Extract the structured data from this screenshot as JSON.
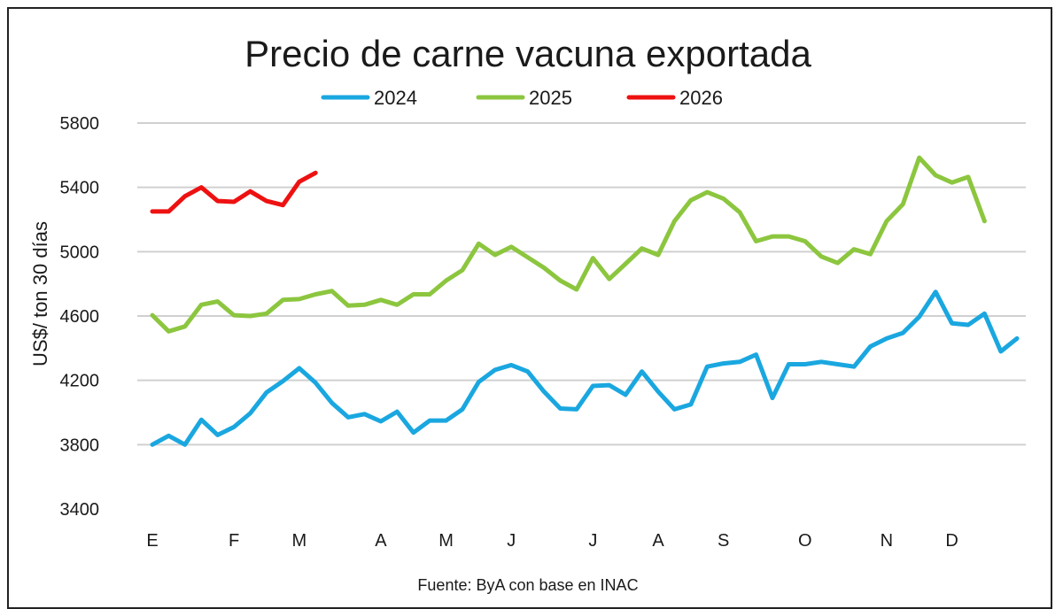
{
  "chart_data": {
    "type": "line",
    "title": "Precio de carne vacuna exportada",
    "ylabel": "US$/ ton 30 días",
    "xlabel": "",
    "source": "Fuente: ByA con base en INAC",
    "ylim": [
      3400,
      5800
    ],
    "yticks": [
      3400,
      3800,
      4200,
      4600,
      5000,
      5400,
      5800
    ],
    "grid": true,
    "legend_position": "top-center",
    "month_labels": [
      {
        "label": "E",
        "index": 0
      },
      {
        "label": "F",
        "index": 5
      },
      {
        "label": "M",
        "index": 9
      },
      {
        "label": "A",
        "index": 14
      },
      {
        "label": "M",
        "index": 18
      },
      {
        "label": "J",
        "index": 22
      },
      {
        "label": "J",
        "index": 27
      },
      {
        "label": "A",
        "index": 31
      },
      {
        "label": "S",
        "index": 35
      },
      {
        "label": "O",
        "index": 40
      },
      {
        "label": "N",
        "index": 45
      },
      {
        "label": "D",
        "index": 49
      }
    ],
    "series": [
      {
        "name": "2024",
        "color": "#1aa7e0",
        "values": [
          3800,
          3855,
          3800,
          3955,
          3860,
          3910,
          3995,
          4125,
          4195,
          4275,
          4185,
          4060,
          3970,
          3990,
          3945,
          4005,
          3875,
          3950,
          3950,
          4020,
          4190,
          4265,
          4295,
          4255,
          4130,
          4025,
          4020,
          4165,
          4170,
          4110,
          4255,
          4130,
          4020,
          4050,
          4285,
          4305,
          4315,
          4360,
          4090,
          4300,
          4300,
          4315,
          4300,
          4285,
          4410,
          4460,
          4495,
          4595,
          4750,
          4555,
          4545,
          4615,
          4380,
          4460
        ]
      },
      {
        "name": "2025",
        "color": "#8cc63f",
        "values": [
          4605,
          4505,
          4535,
          4670,
          4690,
          4605,
          4600,
          4615,
          4700,
          4705,
          4735,
          4755,
          4665,
          4670,
          4700,
          4670,
          4735,
          4735,
          4820,
          4885,
          5050,
          4980,
          5030,
          4965,
          4900,
          4820,
          4765,
          4960,
          4830,
          4925,
          5020,
          4980,
          5190,
          5320,
          5370,
          5330,
          5245,
          5065,
          5095,
          5095,
          5065,
          4970,
          4930,
          5015,
          4985,
          5190,
          5295,
          5585,
          5475,
          5430,
          5465,
          5190
        ]
      },
      {
        "name": "2026",
        "color": "#ee1111",
        "values": [
          5250,
          5250,
          5345,
          5400,
          5315,
          5310,
          5375,
          5315,
          5290,
          5435,
          5490
        ]
      }
    ]
  }
}
